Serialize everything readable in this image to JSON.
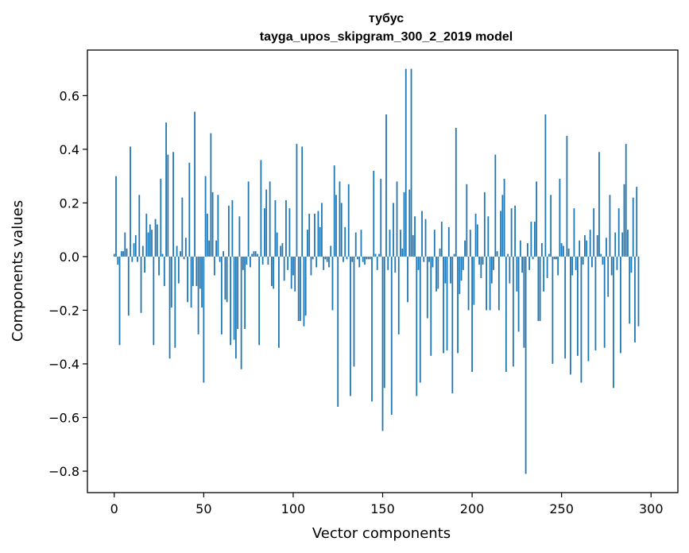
{
  "chart_data": {
    "type": "bar",
    "title": "тубус",
    "subtitle": "tayga_upos_skipgram_300_2_2019 model",
    "xlabel": "Vector components",
    "ylabel": "Components values",
    "xlim": [
      -15,
      315
    ],
    "ylim": [
      -0.88,
      0.77
    ],
    "xticks": [
      0,
      50,
      100,
      150,
      200,
      250,
      300
    ],
    "xtick_labels": [
      "0",
      "50",
      "100",
      "150",
      "200",
      "250",
      "300"
    ],
    "yticks": [
      -0.8,
      -0.6,
      -0.4,
      -0.2,
      0.0,
      0.2,
      0.4,
      0.6
    ],
    "ytick_labels": [
      "−0.8",
      "−0.6",
      "−0.4",
      "−0.2",
      "0.0",
      "0.2",
      "0.4",
      "0.6"
    ],
    "grid": false,
    "bar_color": "#1f77b4",
    "values": [
      0.01,
      0.3,
      -0.03,
      -0.33,
      0.02,
      0.02,
      0.09,
      0.03,
      -0.22,
      0.41,
      -0.02,
      0.05,
      0.08,
      -0.02,
      0.23,
      -0.21,
      0.04,
      -0.06,
      0.16,
      0.09,
      0.12,
      0.1,
      -0.33,
      0.14,
      0.12,
      -0.07,
      0.29,
      0.01,
      -0.11,
      0.5,
      0.38,
      -0.38,
      -0.19,
      0.39,
      -0.34,
      0.04,
      -0.1,
      0.02,
      0.22,
      -0.01,
      0.07,
      -0.17,
      0.35,
      -0.19,
      -0.11,
      0.54,
      -0.11,
      -0.29,
      -0.12,
      -0.19,
      -0.47,
      0.3,
      0.16,
      0.06,
      0.46,
      0.24,
      -0.07,
      0.06,
      0.23,
      -0.02,
      -0.29,
      0.02,
      -0.16,
      -0.17,
      0.19,
      -0.33,
      0.21,
      -0.31,
      -0.38,
      -0.27,
      0.15,
      -0.42,
      -0.05,
      -0.27,
      -0.03,
      0.28,
      -0.04,
      0.01,
      0.02,
      0.02,
      0.01,
      -0.33,
      0.36,
      -0.03,
      0.18,
      0.25,
      -0.03,
      0.28,
      -0.11,
      -0.12,
      0.21,
      0.09,
      -0.34,
      0.04,
      0.05,
      -0.09,
      0.21,
      -0.05,
      0.18,
      -0.12,
      -0.07,
      -0.13,
      0.42,
      -0.24,
      -0.24,
      0.41,
      -0.26,
      -0.22,
      0.1,
      0.16,
      -0.07,
      -0.01,
      0.16,
      -0.04,
      0.17,
      0.11,
      0.2,
      -0.05,
      -0.01,
      -0.02,
      -0.04,
      0.04,
      -0.2,
      0.34,
      0.23,
      -0.56,
      0.28,
      0.2,
      -0.02,
      0.11,
      -0.01,
      0.27,
      -0.52,
      -0.02,
      -0.41,
      0.09,
      -0.01,
      -0.04,
      0.1,
      -0.02,
      -0.03,
      -0.01,
      -0.01,
      -0.01,
      -0.54,
      0.32,
      0.01,
      -0.05,
      0.01,
      0.29,
      -0.65,
      -0.49,
      0.53,
      -0.05,
      0.1,
      -0.59,
      0.2,
      -0.06,
      0.28,
      -0.29,
      0.1,
      0.03,
      0.24,
      0.7,
      -0.17,
      0.25,
      0.7,
      0.08,
      0.15,
      -0.52,
      -0.05,
      -0.47,
      0.17,
      -0.02,
      0.14,
      -0.23,
      -0.02,
      -0.37,
      -0.04,
      0.1,
      -0.13,
      -0.12,
      0.03,
      0.13,
      -0.36,
      -0.1,
      -0.35,
      0.11,
      -0.1,
      -0.51,
      0.01,
      0.48,
      -0.36,
      -0.14,
      -0.09,
      -0.05,
      0.06,
      0.27,
      -0.2,
      0.1,
      -0.43,
      -0.18,
      0.16,
      0.12,
      -0.03,
      -0.08,
      -0.03,
      0.24,
      -0.2,
      0.15,
      -0.2,
      -0.1,
      -0.05,
      0.38,
      0.02,
      -0.2,
      0.17,
      0.23,
      0.29,
      -0.43,
      0.01,
      -0.1,
      0.18,
      -0.41,
      0.19,
      -0.13,
      -0.28,
      0.06,
      -0.06,
      -0.34,
      -0.81,
      0.05,
      -0.05,
      0.13,
      -0.01,
      0.13,
      0.28,
      -0.24,
      -0.24,
      0.05,
      -0.13,
      0.53,
      -0.08,
      0.01,
      0.23,
      -0.4,
      -0.01,
      -0.01,
      -0.07,
      0.29,
      0.05,
      0.04,
      -0.38,
      0.45,
      0.03,
      -0.44,
      -0.07,
      0.18,
      -0.05,
      -0.37,
      0.06,
      -0.47,
      -0.03,
      0.08,
      0.06,
      -0.39,
      0.1,
      -0.04,
      0.18,
      -0.35,
      0.08,
      0.39,
      0.01,
      -0.03,
      -0.34,
      0.07,
      -0.15,
      0.23,
      -0.07,
      -0.49,
      0.09,
      -0.05,
      0.18,
      -0.36,
      0.09,
      0.27,
      0.42,
      0.1,
      -0.25,
      -0.06,
      0.22,
      -0.32,
      0.26,
      -0.26
    ]
  }
}
